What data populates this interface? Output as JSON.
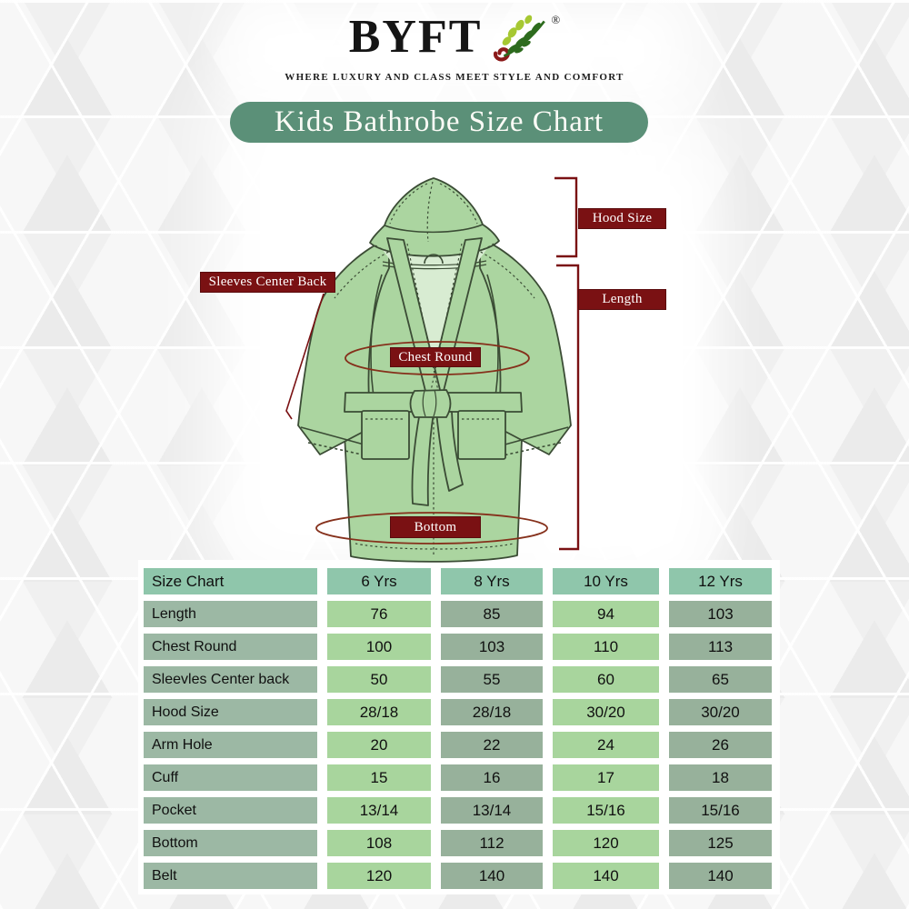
{
  "brand": {
    "name": "BYFT",
    "registered_mark": "®",
    "tagline": "WHERE LUXURY AND CLASS MEET STYLE AND COMFORT"
  },
  "title": "Kids Bathrobe Size Chart",
  "diagram": {
    "labels": {
      "hood_size": "Hood Size",
      "length": "Length",
      "sleeves_center_back": "Sleeves Center Back",
      "chest_round": "Chest Round",
      "bottom": "Bottom"
    }
  },
  "chart_data": {
    "type": "table",
    "title": "Kids Bathrobe Size Chart",
    "columns": [
      "Size Chart",
      "6 Yrs",
      "8 Yrs",
      "10 Yrs",
      "12 Yrs"
    ],
    "rows": [
      {
        "label": "Length",
        "values": [
          "76",
          "85",
          "94",
          "103"
        ]
      },
      {
        "label": "Chest Round",
        "values": [
          "100",
          "103",
          "110",
          "113"
        ]
      },
      {
        "label": "Sleevles Center back",
        "values": [
          "50",
          "55",
          "60",
          "65"
        ]
      },
      {
        "label": "Hood Size",
        "values": [
          "28/18",
          "28/18",
          "30/20",
          "30/20"
        ]
      },
      {
        "label": "Arm Hole",
        "values": [
          "20",
          "22",
          "24",
          "26"
        ]
      },
      {
        "label": "Cuff",
        "values": [
          "15",
          "16",
          "17",
          "18"
        ]
      },
      {
        "label": "Pocket",
        "values": [
          "13/14",
          "13/14",
          "15/16",
          "15/16"
        ]
      },
      {
        "label": "Bottom",
        "values": [
          "108",
          "112",
          "120",
          "125"
        ]
      },
      {
        "label": "Belt",
        "values": [
          "120",
          "140",
          "140",
          "140"
        ]
      }
    ]
  },
  "colors": {
    "banner_green": "#5b9078",
    "header_teal": "#8fc6ab",
    "row_label_green": "#9cb8a4",
    "cell_light_green": "#a8d59d",
    "cell_dark_green": "#97b19b",
    "label_maroon": "#7a1113",
    "robe_green": "#abd5a0",
    "robe_inner_green": "#d8ecd2",
    "measure_red": "#85301b"
  }
}
